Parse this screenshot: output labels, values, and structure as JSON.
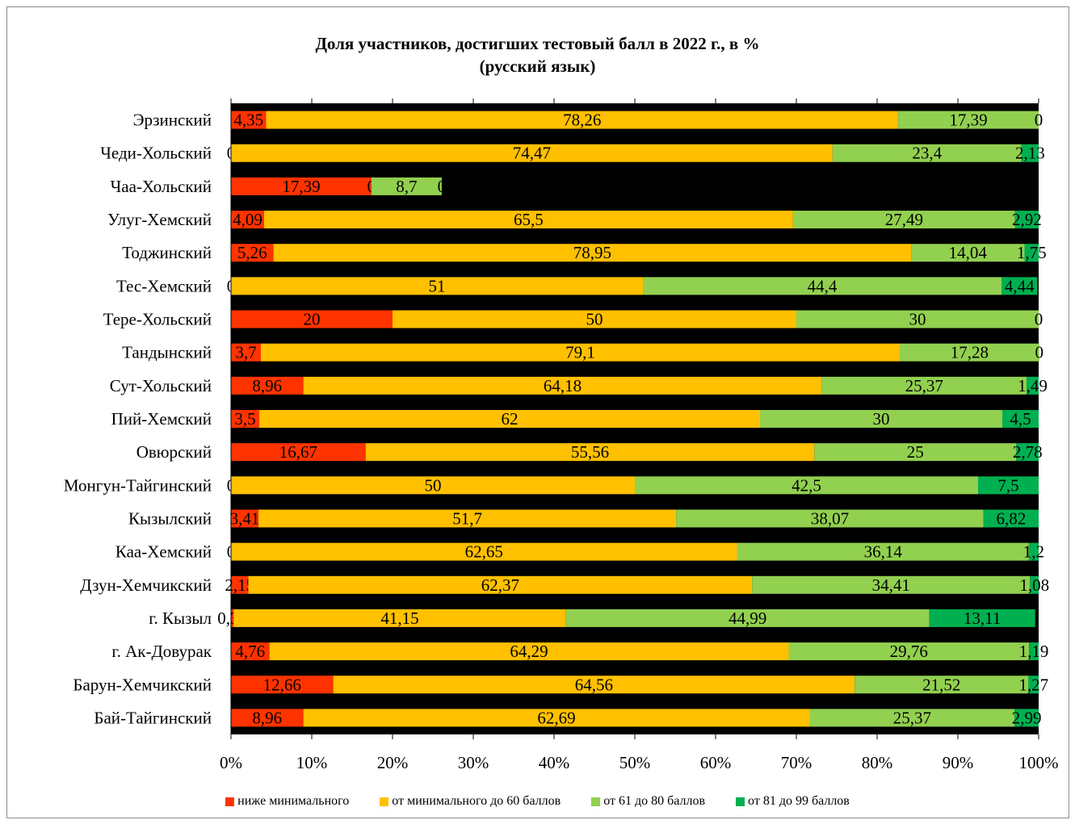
{
  "chart_data": {
    "type": "bar",
    "orientation": "horizontal",
    "stacked": "percent",
    "title": "Доля участников, достигших тестовый балл в 2022 г., в %",
    "subtitle": "(русский язык)",
    "categories": [
      "Эрзинский",
      "Чеди-Хольский",
      "Чаа-Хольский",
      "Улуг-Хемский",
      "Тоджинский",
      "Тес-Хемский",
      "Тере-Хольский",
      "Тандынский",
      "Сут-Хольский",
      "Пий-Хемский",
      "Овюрский",
      "Монгун-Тайгинский",
      "Кызылский",
      "Каа-Хемский",
      "Дзун-Хемчикский",
      "г. Кызыл",
      "г. Ак-Довурак",
      "Барун-Хемчикский",
      "Бай-Тайгинский"
    ],
    "series": [
      {
        "name": "ниже минимального",
        "color": "#FF3300",
        "values": [
          4.35,
          0,
          17.39,
          4.09,
          5.26,
          0,
          20,
          3.7,
          8.96,
          3.5,
          16.67,
          0,
          3.41,
          0,
          2.15,
          0.32,
          4.76,
          12.66,
          8.96
        ],
        "labels": [
          "4,35",
          "0",
          "17,39",
          "4,09",
          "5,26",
          "0",
          "20",
          "3,7",
          "8,96",
          "3,5",
          "16,67",
          "0",
          "3,41",
          "0",
          "2,15",
          "0,32",
          "4,76",
          "12,66",
          "8,96"
        ]
      },
      {
        "name": "от минимального до 60 баллов",
        "color": "#FFC000",
        "values": [
          78.26,
          74.47,
          0,
          65.5,
          78.95,
          51,
          50,
          79.1,
          64.18,
          62,
          55.56,
          50,
          51.7,
          62.65,
          62.37,
          41.15,
          64.29,
          64.56,
          62.69
        ],
        "labels": [
          "78,26",
          "74,47",
          "0",
          "65,5",
          "78,95",
          "51",
          "50",
          "79,1",
          "64,18",
          "62",
          "55,56",
          "50",
          "51,7",
          "62,65",
          "62,37",
          "41,15",
          "64,29",
          "64,56",
          "62,69"
        ]
      },
      {
        "name": "от 61 до 80 баллов",
        "color": "#92D050",
        "values": [
          17.39,
          23.4,
          8.7,
          27.49,
          14.04,
          44.4,
          30,
          17.28,
          25.37,
          30,
          25,
          42.5,
          38.07,
          36.14,
          34.41,
          44.99,
          29.76,
          21.52,
          25.37
        ],
        "labels": [
          "17,39",
          "23,4",
          "8,7",
          "27,49",
          "14,04",
          "44,4",
          "30",
          "17,28",
          "25,37",
          "30",
          "25",
          "42,5",
          "38,07",
          "36,14",
          "34,41",
          "44,99",
          "29,76",
          "21,52",
          "25,37"
        ]
      },
      {
        "name": "от 81 до 99 баллов",
        "color": "#00B050",
        "values": [
          0,
          2.13,
          0,
          2.92,
          1.75,
          4.44,
          0,
          0,
          1.49,
          4.5,
          2.78,
          7.5,
          6.82,
          1.2,
          1.08,
          13.11,
          1.19,
          1.27,
          2.99
        ],
        "labels": [
          "0",
          "2,13",
          "0",
          "2,92",
          "1,75",
          "4,44",
          "0",
          "0",
          "1,49",
          "4,5",
          "2,78",
          "7,5",
          "6,82",
          "1,2",
          "1,08",
          "13,11",
          "1,19",
          "1,27",
          "2,99"
        ]
      }
    ],
    "xlim": [
      0,
      100
    ],
    "x_ticks": [
      "0%",
      "10%",
      "20%",
      "30%",
      "40%",
      "50%",
      "60%",
      "70%",
      "80%",
      "90%",
      "100%"
    ],
    "grid": false,
    "legend_position": "bottom"
  }
}
